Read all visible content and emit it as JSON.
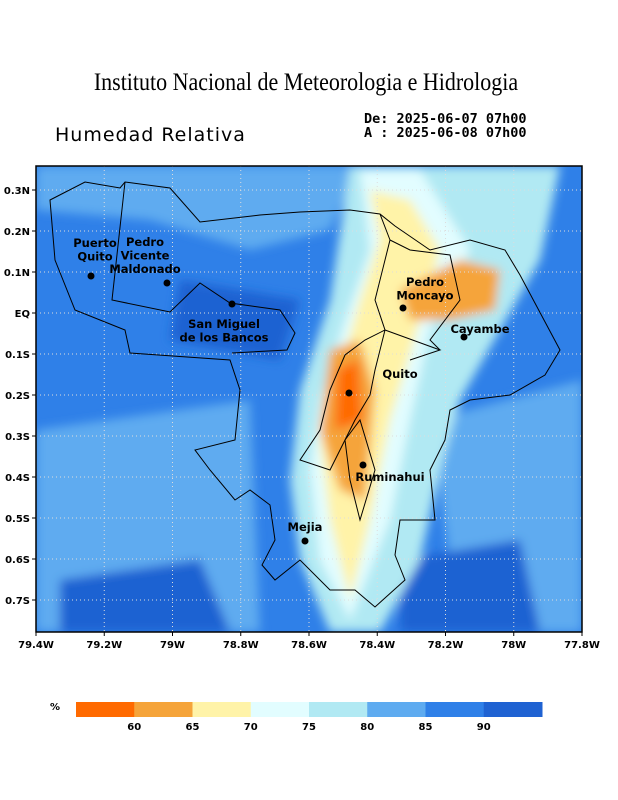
{
  "header": {
    "title": "Instituto Nacional de Meteorologia e Hidrologia",
    "subtitle": "Humedad Relativa",
    "date_from": "De: 2025-06-07 07h00",
    "date_to": "A : 2025-06-08 07h00"
  },
  "map": {
    "lat_ticks": [
      "0.3N",
      "0.2N",
      "0.1N",
      "EQ",
      "0.1S",
      "0.2S",
      "0.3S",
      "0.4S",
      "0.5S",
      "0.6S",
      "0.7S"
    ],
    "lon_ticks": [
      "79.4W",
      "79.2W",
      "79W",
      "78.8W",
      "78.6W",
      "78.4W",
      "78.2W",
      "78W",
      "77.8W"
    ],
    "places": [
      {
        "lines": [
          "Puerto",
          "Quito"
        ]
      },
      {
        "lines": [
          "Pedro",
          "Vicente",
          "Maldonado"
        ]
      },
      {
        "lines": [
          "San Miguel",
          "de los Bancos"
        ]
      },
      {
        "lines": [
          "Quito"
        ]
      },
      {
        "lines": [
          "Pedro",
          "Moncayo"
        ]
      },
      {
        "lines": [
          "Cayambe"
        ]
      },
      {
        "lines": [
          "Ruminahui"
        ]
      },
      {
        "lines": [
          "Mejia"
        ]
      }
    ]
  },
  "legend": {
    "unit": "%",
    "labels": [
      "60",
      "65",
      "70",
      "75",
      "80",
      "85",
      "90"
    ],
    "colors": [
      "#ff6a00",
      "#f5a43a",
      "#fff3a8",
      "#e2fdff",
      "#b1e9f3",
      "#5eabf0",
      "#2f80e8",
      "#1f62d2"
    ]
  }
}
